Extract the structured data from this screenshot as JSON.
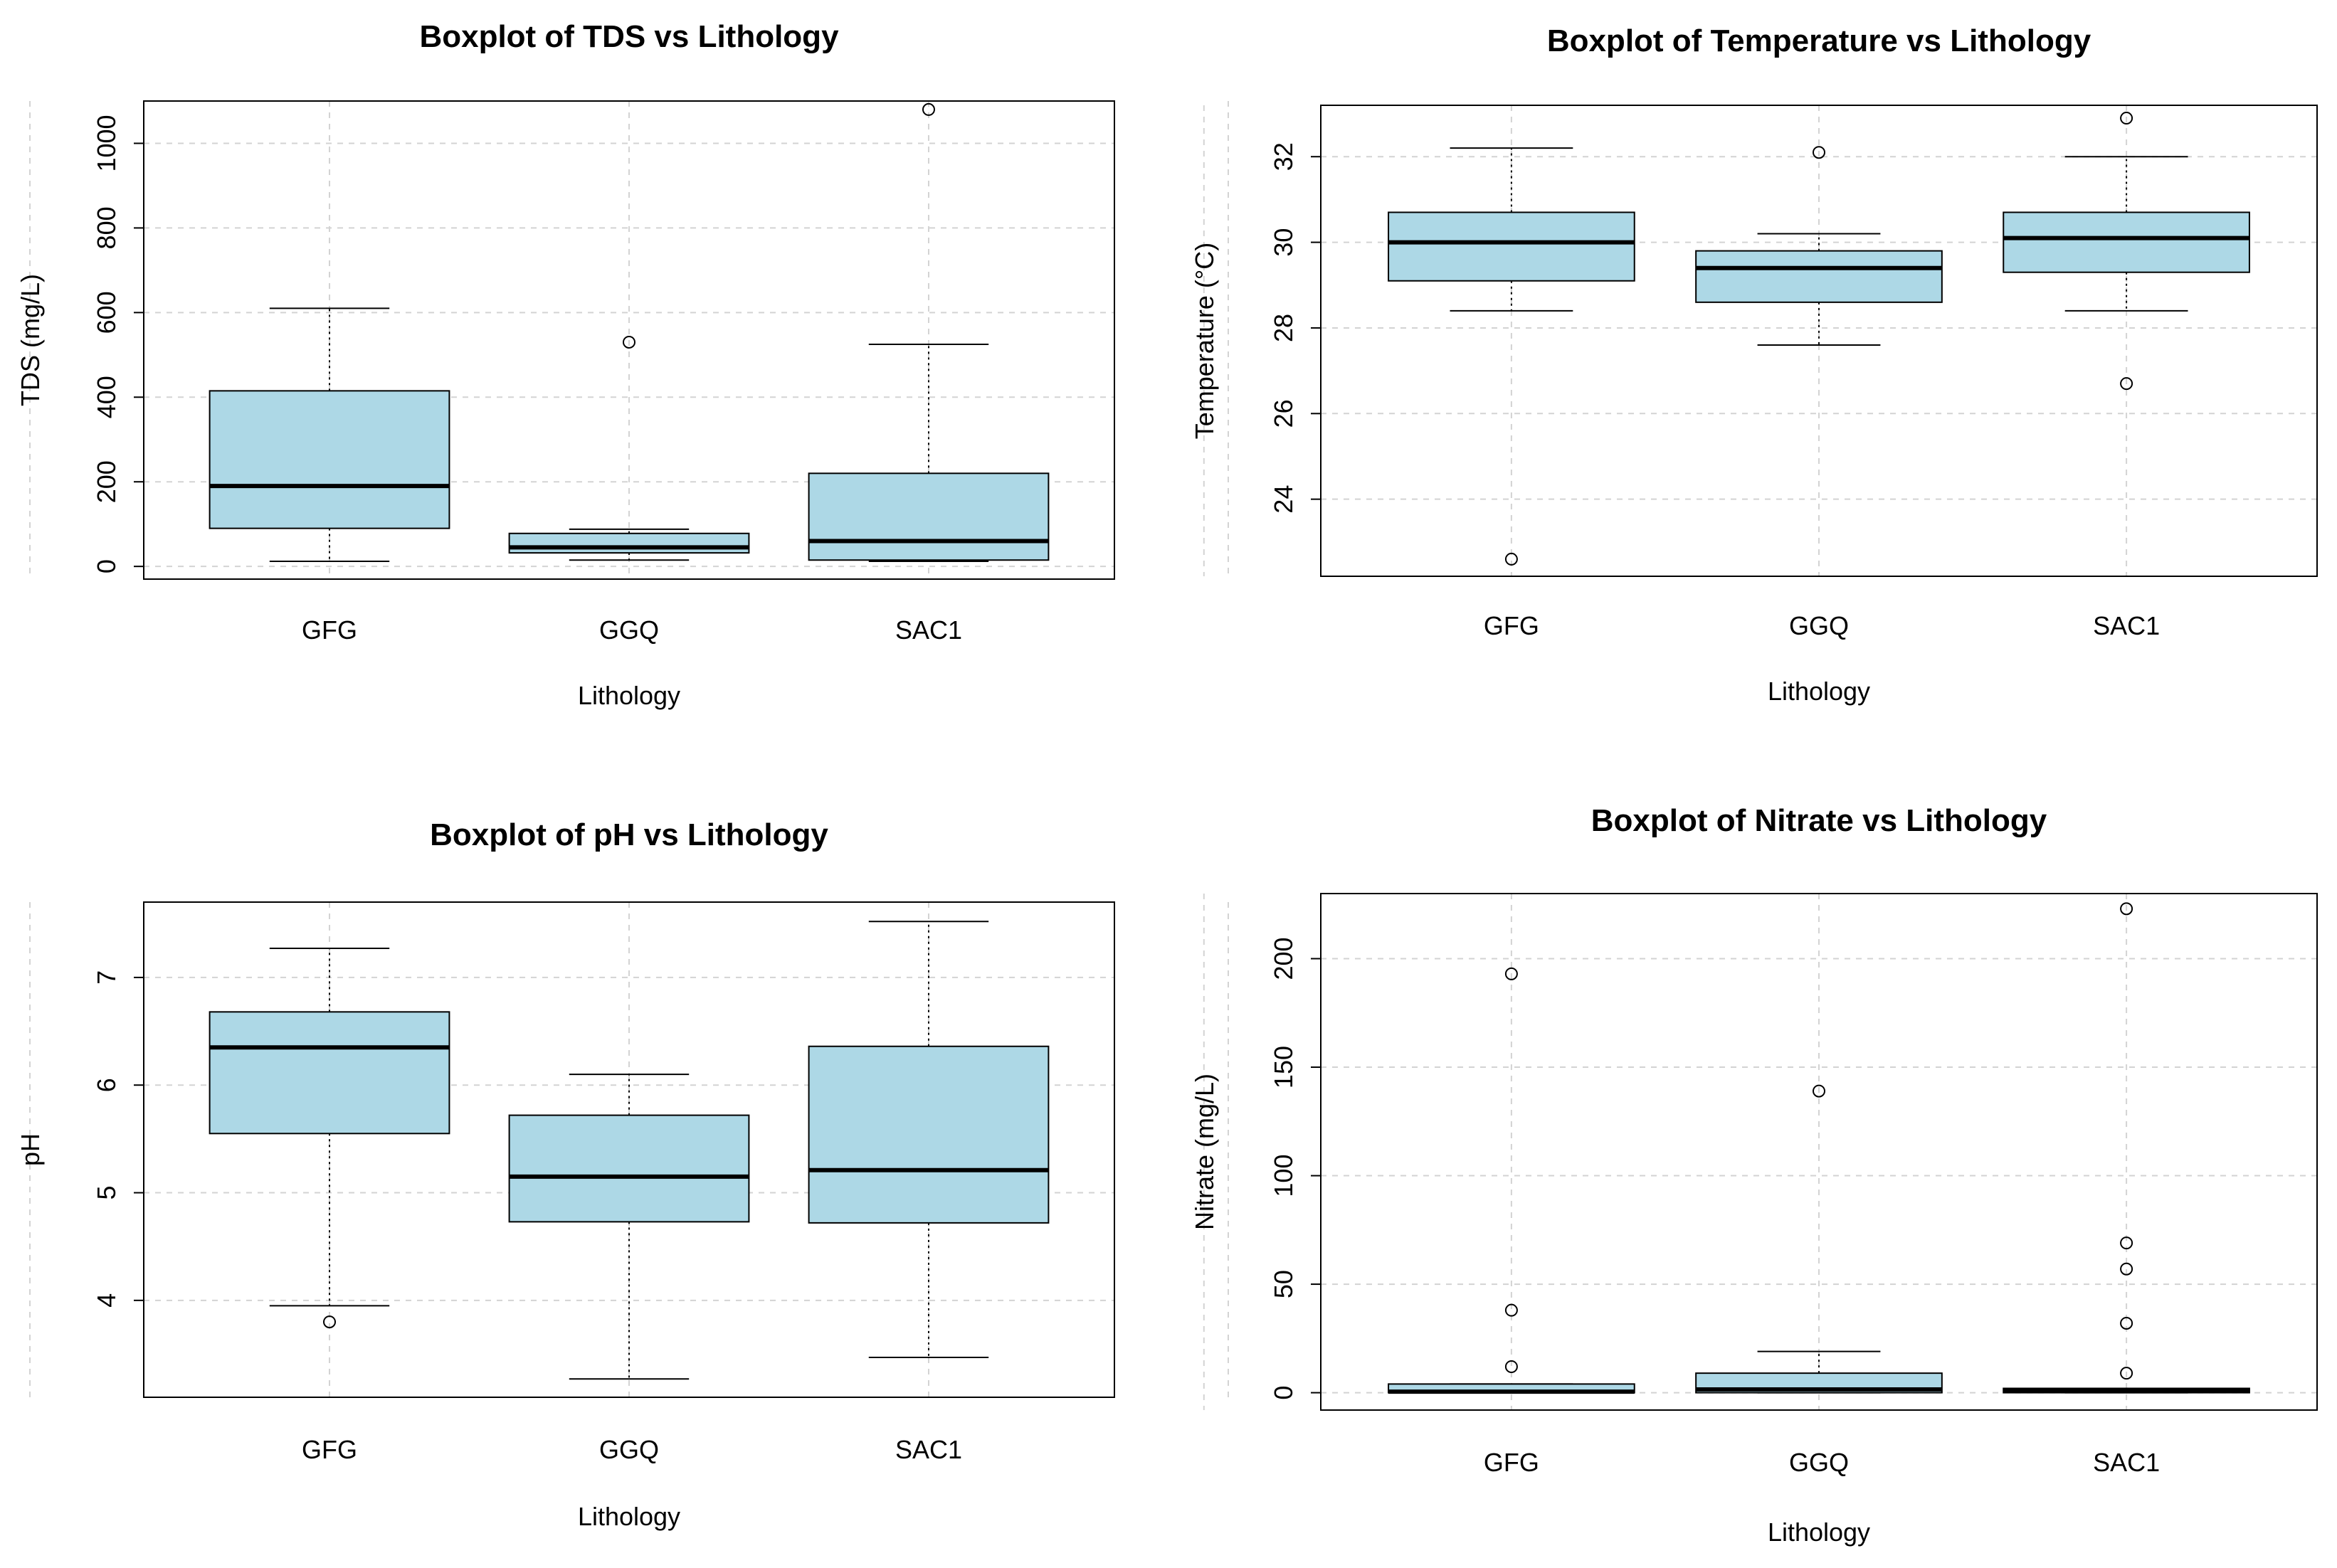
{
  "colors": {
    "box_fill": "#add8e6",
    "grid": "#d3d3d3",
    "stroke": "#000000"
  },
  "chart_data": [
    {
      "type": "boxplot",
      "title": "Boxplot of TDS vs Lithology",
      "xlabel": "Lithology",
      "ylabel": "TDS (mg/L)",
      "categories": [
        "GFG",
        "GGQ",
        "SAC1"
      ],
      "ylim": [
        -30,
        1100
      ],
      "yticks": [
        0,
        200,
        400,
        600,
        800,
        1000
      ],
      "boxes": [
        {
          "category": "GFG",
          "min": 12,
          "q1": 90,
          "median": 190,
          "q3": 415,
          "max": 610,
          "outliers": []
        },
        {
          "category": "GGQ",
          "min": 15,
          "q1": 32,
          "median": 45,
          "q3": 78,
          "max": 88,
          "outliers": [
            530
          ]
        },
        {
          "category": "SAC1",
          "min": 12,
          "q1": 15,
          "median": 60,
          "q3": 220,
          "max": 525,
          "outliers": [
            1080
          ]
        }
      ]
    },
    {
      "type": "boxplot",
      "title": "Boxplot of Temperature vs Lithology",
      "xlabel": "Lithology",
      "ylabel": "Temperature (°C)",
      "categories": [
        "GFG",
        "GGQ",
        "SAC1"
      ],
      "ylim": [
        22.2,
        33.2
      ],
      "yticks": [
        24,
        26,
        28,
        30,
        32
      ],
      "boxes": [
        {
          "category": "GFG",
          "min": 28.4,
          "q1": 29.1,
          "median": 30.0,
          "q3": 30.7,
          "max": 32.2,
          "outliers": [
            22.6
          ]
        },
        {
          "category": "GGQ",
          "min": 27.6,
          "q1": 28.6,
          "median": 29.4,
          "q3": 29.8,
          "max": 30.2,
          "outliers": [
            32.1
          ]
        },
        {
          "category": "SAC1",
          "min": 28.4,
          "q1": 29.3,
          "median": 30.1,
          "q3": 30.7,
          "max": 32.0,
          "outliers": [
            32.9,
            26.7
          ]
        }
      ]
    },
    {
      "type": "boxplot",
      "title": "Boxplot of pH vs Lithology",
      "xlabel": "Lithology",
      "ylabel": "pH",
      "categories": [
        "GFG",
        "GGQ",
        "SAC1"
      ],
      "ylim": [
        3.1,
        7.7
      ],
      "yticks": [
        4,
        5,
        6,
        7
      ],
      "boxes": [
        {
          "category": "GFG",
          "min": 3.95,
          "q1": 5.55,
          "median": 6.35,
          "q3": 6.68,
          "max": 7.27,
          "outliers": [
            3.8
          ]
        },
        {
          "category": "GGQ",
          "min": 3.27,
          "q1": 4.73,
          "median": 5.15,
          "q3": 5.72,
          "max": 6.1,
          "outliers": []
        },
        {
          "category": "SAC1",
          "min": 3.47,
          "q1": 4.72,
          "median": 5.21,
          "q3": 6.36,
          "max": 7.52,
          "outliers": []
        }
      ]
    },
    {
      "type": "boxplot",
      "title": "Boxplot of Nitrate vs Lithology",
      "xlabel": "Lithology",
      "ylabel": "Nitrate (mg/L)",
      "categories": [
        "GFG",
        "GGQ",
        "SAC1"
      ],
      "ylim": [
        -8,
        230
      ],
      "yticks": [
        0,
        50,
        100,
        150,
        200
      ],
      "boxes": [
        {
          "category": "GFG",
          "min": 0,
          "q1": 0,
          "median": 0.5,
          "q3": 4,
          "max": 4,
          "outliers": [
            193,
            38,
            12
          ]
        },
        {
          "category": "GGQ",
          "min": 0,
          "q1": 0,
          "median": 1.5,
          "q3": 9,
          "max": 19,
          "outliers": [
            139
          ]
        },
        {
          "category": "SAC1",
          "min": 0,
          "q1": 0,
          "median": 1,
          "q3": 2,
          "max": 2,
          "outliers": [
            223,
            69,
            57,
            32,
            9
          ]
        }
      ]
    }
  ]
}
